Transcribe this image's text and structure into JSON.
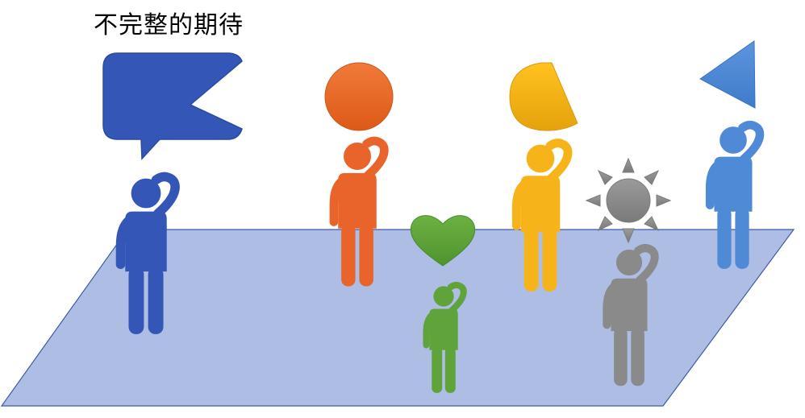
{
  "title": "不完整的期待",
  "colors": {
    "floor": "#aebde4",
    "floor_stroke": "#3f5aa8",
    "blue_dark": "#3355b7",
    "orange": "#e8642a",
    "green": "#5fa33a",
    "yellow": "#f6b41a",
    "gray": "#8a8a8a",
    "blue_light": "#4f8ad6"
  },
  "figures": [
    {
      "name": "figure-dark-blue",
      "color": "blue_dark",
      "expectation": "speech-bubble-with-notch"
    },
    {
      "name": "figure-orange",
      "color": "orange",
      "expectation": "circle"
    },
    {
      "name": "figure-green",
      "color": "green",
      "expectation": "heart"
    },
    {
      "name": "figure-yellow",
      "color": "yellow",
      "expectation": "partial-circle"
    },
    {
      "name": "figure-gray",
      "color": "gray",
      "expectation": "sun"
    },
    {
      "name": "figure-light-blue",
      "color": "blue_light",
      "expectation": "triangle"
    }
  ]
}
